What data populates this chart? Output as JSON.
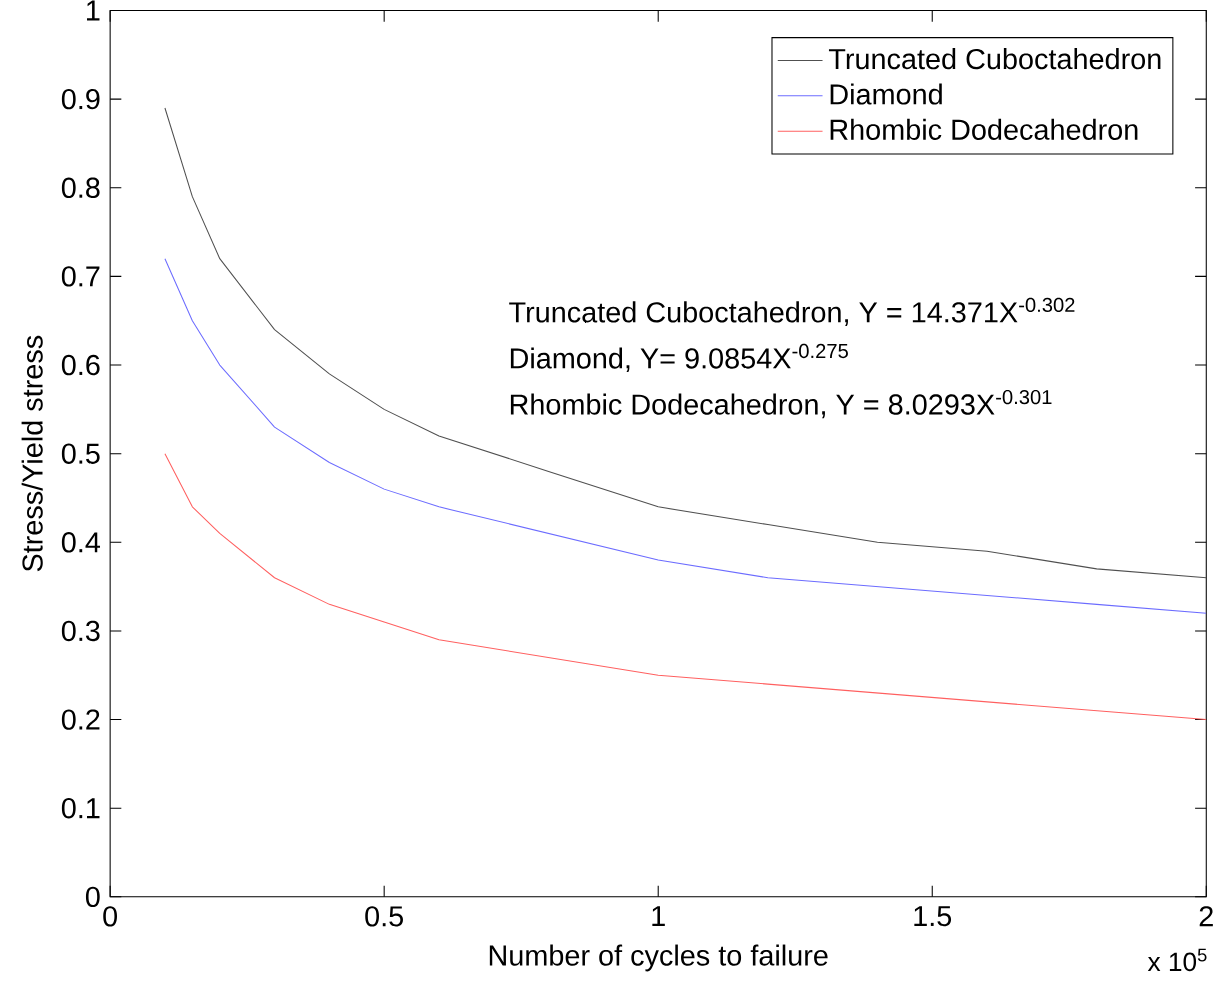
{
  "chart_data": {
    "type": "line",
    "xlabel": "Number of cycles to failure",
    "ylabel": "Stress/Yield stress",
    "xlim": [
      0,
      2
    ],
    "ylim": [
      0,
      1
    ],
    "xticks": [
      0,
      0.5,
      1,
      1.5,
      2
    ],
    "yticks": [
      0,
      0.1,
      0.2,
      0.3,
      0.4,
      0.5,
      0.6,
      0.7,
      0.8,
      0.9,
      1
    ],
    "x": [
      0.1,
      0.15,
      0.2,
      0.3,
      0.4,
      0.5,
      0.6,
      0.8,
      1.0,
      1.2,
      1.4,
      1.6,
      1.8,
      2.0
    ],
    "series": [
      {
        "name": "Truncated Cuboctahedron",
        "color": "#505050",
        "values": [
          0.89,
          0.79,
          0.72,
          0.64,
          0.59,
          0.55,
          0.52,
          0.48,
          0.44,
          0.42,
          0.4,
          0.39,
          0.37,
          0.36
        ]
      },
      {
        "name": "Diamond",
        "color": "#6c6cff",
        "values": [
          0.72,
          0.65,
          0.6,
          0.53,
          0.49,
          0.46,
          0.44,
          0.41,
          0.38,
          0.36,
          0.35,
          0.34,
          0.33,
          0.32
        ]
      },
      {
        "name": "Rhombic Dodecahedron",
        "color": "#ff6060",
        "values": [
          0.5,
          0.44,
          0.41,
          0.36,
          0.33,
          0.31,
          0.29,
          0.27,
          0.25,
          0.24,
          0.23,
          0.22,
          0.21,
          0.2
        ]
      }
    ],
    "annotations": [
      "Truncated Cuboctahedron, Y = 14.371X$^{-0.302}$",
      "Diamond, Y= 9.0854X$^{-0.275}$",
      "Rhombic Dodecahedron, Y = 8.0293X$^{-0.301}$",
      "x 10$^{5}$"
    ],
    "legend": "top right",
    "grid": false,
    "marker": "none",
    "line_style": "solid"
  }
}
